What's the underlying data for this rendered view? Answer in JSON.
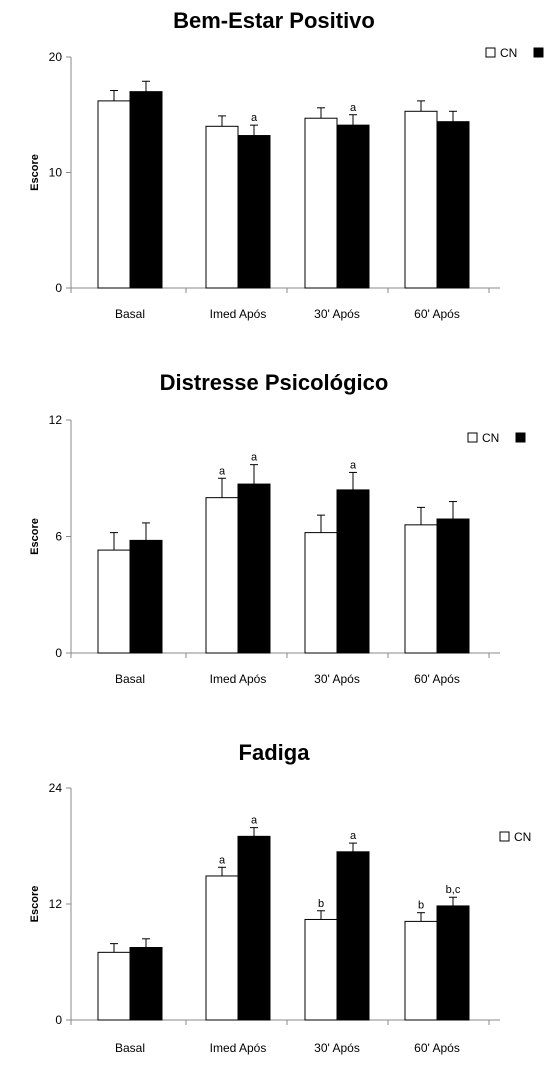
{
  "chart_data": [
    {
      "type": "bar",
      "title": "Bem-Estar Positivo",
      "ylabel": "Escore",
      "xlabel": "",
      "categories": [
        "Basal",
        "Imed Após",
        "30' Após",
        "60' Após"
      ],
      "ylim": [
        0,
        20
      ],
      "yticks": [
        0,
        10,
        20
      ],
      "series": [
        {
          "name": "CN",
          "fill": "#ffffff",
          "values": [
            16.2,
            14.0,
            14.7,
            15.3
          ],
          "errors": [
            0.9,
            0.9,
            0.9,
            0.9
          ],
          "annotations": [
            "",
            "",
            "",
            ""
          ]
        },
        {
          "name": "",
          "fill": "#000000",
          "values": [
            17.0,
            13.2,
            14.1,
            14.4
          ],
          "errors": [
            0.9,
            0.9,
            0.9,
            0.9
          ],
          "annotations": [
            "",
            "a",
            "a",
            ""
          ]
        }
      ],
      "legend": {
        "position": "top-right",
        "labels": [
          "CN",
          ""
        ]
      },
      "grid": false
    },
    {
      "type": "bar",
      "title": "Distresse Psicológico",
      "ylabel": "Escore",
      "xlabel": "",
      "categories": [
        "Basal",
        "Imed Após",
        "30' Após",
        "60' Após"
      ],
      "ylim": [
        0,
        12
      ],
      "yticks": [
        0,
        6,
        12
      ],
      "series": [
        {
          "name": "CN",
          "fill": "#ffffff",
          "values": [
            5.3,
            8.0,
            6.2,
            6.6
          ],
          "errors": [
            0.9,
            1.0,
            0.9,
            0.9
          ],
          "annotations": [
            "",
            "a",
            "",
            ""
          ]
        },
        {
          "name": "",
          "fill": "#000000",
          "values": [
            5.8,
            8.7,
            8.4,
            6.9
          ],
          "errors": [
            0.9,
            1.0,
            0.9,
            0.9
          ],
          "annotations": [
            "",
            "a",
            "a",
            ""
          ]
        }
      ],
      "legend": {
        "position": "top-right",
        "labels": [
          "CN",
          ""
        ]
      },
      "grid": false
    },
    {
      "type": "bar",
      "title": "Fadiga",
      "ylabel": "Escore",
      "xlabel": "",
      "categories": [
        "Basal",
        "Imed Após",
        "30' Após",
        "60' Após"
      ],
      "ylim": [
        0,
        24
      ],
      "yticks": [
        0,
        12,
        24
      ],
      "series": [
        {
          "name": "CN",
          "fill": "#ffffff",
          "values": [
            7.0,
            14.9,
            10.4,
            10.2
          ],
          "errors": [
            0.9,
            0.9,
            0.9,
            0.9
          ],
          "annotations": [
            "",
            "a",
            "b",
            "b"
          ]
        },
        {
          "name": "",
          "fill": "#000000",
          "values": [
            7.5,
            19.0,
            17.4,
            11.8
          ],
          "errors": [
            0.9,
            0.9,
            0.9,
            0.9
          ],
          "annotations": [
            "",
            "a",
            "a",
            "b,c"
          ]
        }
      ],
      "legend": {
        "position": "top-right",
        "labels": [
          "CN"
        ]
      },
      "grid": false
    }
  ]
}
